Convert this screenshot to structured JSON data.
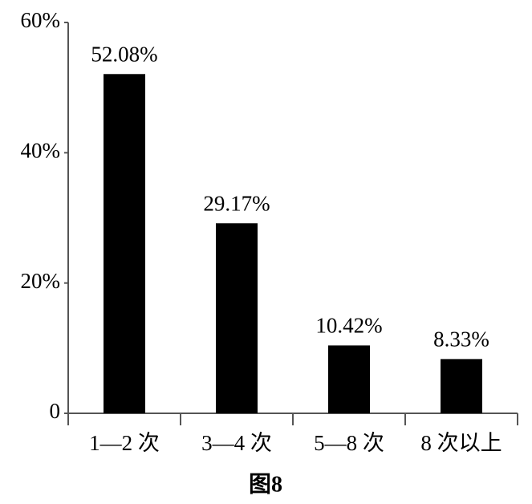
{
  "chart_data": {
    "type": "bar",
    "title": "图8",
    "categories": [
      "1—2 次",
      "3—4 次",
      "5—8 次",
      "8 次以上"
    ],
    "values": [
      52.08,
      29.17,
      10.42,
      8.33
    ],
    "value_labels": [
      "52.08%",
      "29.17%",
      "10.42%",
      "8.33%"
    ],
    "color": "#000000",
    "ylim": [
      0,
      60
    ],
    "yticks": [
      0,
      {
        "value": 20,
        "label": "20%"
      },
      {
        "value": 40,
        "label": "40%"
      },
      {
        "value": 60,
        "label": "60%"
      }
    ],
    "grid": false
  }
}
